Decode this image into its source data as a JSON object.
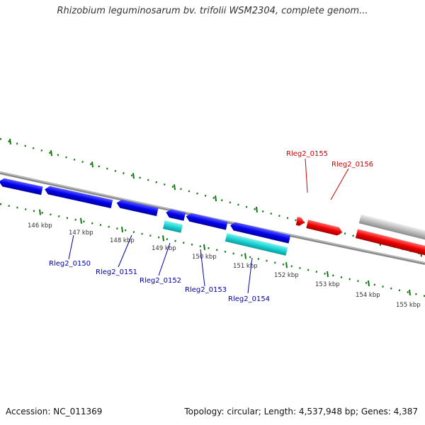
{
  "title": "Rhizobium leguminosarum bv. trifolii WSM2304, complete genom...",
  "footer": {
    "accession": "Accession: NC_011369",
    "summary": "Topology: circular; Length: 4,537,948 bp; Genes: 4,387"
  },
  "colors": {
    "forward_gene": "#0000ee",
    "reverse_gene": "#1ad3d3",
    "highlight_gene": "#ee0000",
    "neighbor_gene": "#bdbdbd",
    "tick": "#117711",
    "backbone": "#999999",
    "label_blue": "#0000aa",
    "label_red": "#cc0000"
  },
  "scale": {
    "ticks": [
      {
        "label": "146 kbp"
      },
      {
        "label": "147 kbp"
      },
      {
        "label": "148 kbp"
      },
      {
        "label": "149 kbp"
      },
      {
        "label": "150 kbp"
      },
      {
        "label": "151 kbp"
      },
      {
        "label": "152 kbp"
      },
      {
        "label": "153 kbp"
      },
      {
        "label": "154 kbp"
      },
      {
        "label": "155 kbp"
      }
    ]
  },
  "gene_labels": [
    {
      "name": "Rleg2_0150",
      "group": "blue"
    },
    {
      "name": "Rleg2_0151",
      "group": "blue"
    },
    {
      "name": "Rleg2_0152",
      "group": "blue"
    },
    {
      "name": "Rleg2_0153",
      "group": "blue"
    },
    {
      "name": "Rleg2_0154",
      "group": "blue"
    },
    {
      "name": "Rleg2_0155",
      "group": "red"
    },
    {
      "name": "Rleg2_0156",
      "group": "red"
    }
  ]
}
